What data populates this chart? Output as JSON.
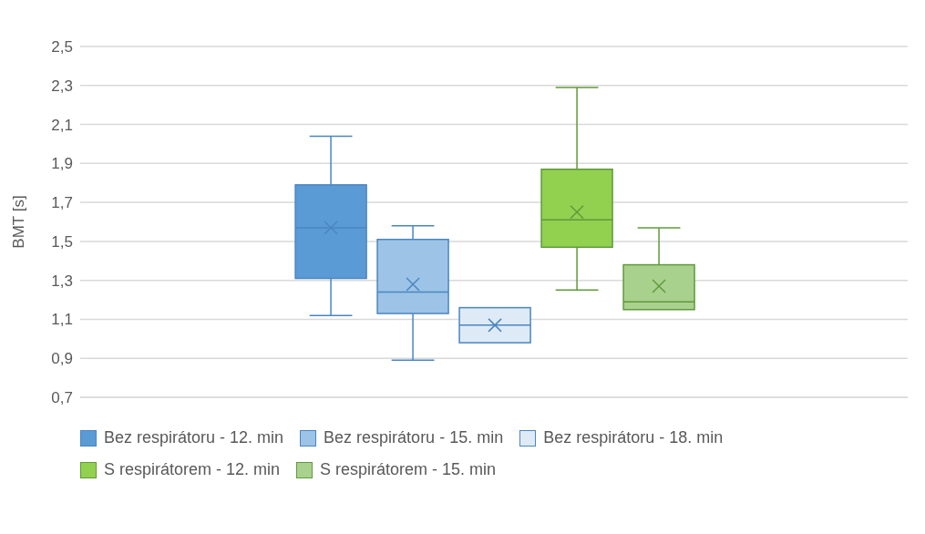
{
  "chart_data": {
    "type": "box",
    "ylabel": "BMT [s]",
    "categories": [
      null
    ],
    "series": [
      {
        "name": "Bez respirátoru - 12. min",
        "color": "#5b9bd5",
        "boxes": [
          {
            "low": 1.12,
            "q1": 1.31,
            "median": 1.57,
            "q3": 1.79,
            "high": 2.04,
            "mean": 1.57
          }
        ]
      },
      {
        "name": "Bez respirátoru - 15. min",
        "color": "#9dc3e6",
        "boxes": [
          {
            "low": 0.89,
            "q1": 1.13,
            "median": 1.24,
            "q3": 1.51,
            "high": 1.58,
            "mean": 1.28
          }
        ]
      },
      {
        "name": "Bez respirátoru - 18. min",
        "color": "#deebf7",
        "boxes": [
          {
            "low": 0.98,
            "q1": 0.98,
            "median": 1.07,
            "q3": 1.16,
            "high": 1.16,
            "mean": 1.07
          }
        ]
      },
      {
        "name": "S respirátorem - 12. min",
        "color": "#92d050",
        "boxes": [
          {
            "low": 1.25,
            "q1": 1.47,
            "median": 1.61,
            "q3": 1.87,
            "high": 2.29,
            "mean": 1.65
          }
        ]
      },
      {
        "name": "S respirátorem - 15. min",
        "color": "#a9d18e",
        "boxes": [
          {
            "low": 1.15,
            "q1": 1.15,
            "median": 1.19,
            "q3": 1.38,
            "high": 1.57,
            "mean": 1.27
          }
        ]
      }
    ],
    "ylim": [
      0.7,
      2.5
    ],
    "yticks": [
      {
        "value": 0.7,
        "label": "0,7"
      },
      {
        "value": 0.9,
        "label": "0,9"
      },
      {
        "value": 1.1,
        "label": "1,1"
      },
      {
        "value": 1.3,
        "label": "1,3"
      },
      {
        "value": 1.5,
        "label": "1,5"
      },
      {
        "value": 1.7,
        "label": "1,7"
      },
      {
        "value": 1.9,
        "label": "1,9"
      },
      {
        "value": 2.1,
        "label": "2,1"
      },
      {
        "value": 2.3,
        "label": "2,3"
      },
      {
        "value": 2.5,
        "label": "2,5"
      }
    ],
    "grid": "y",
    "legend": "bottom",
    "marker": "cross"
  }
}
